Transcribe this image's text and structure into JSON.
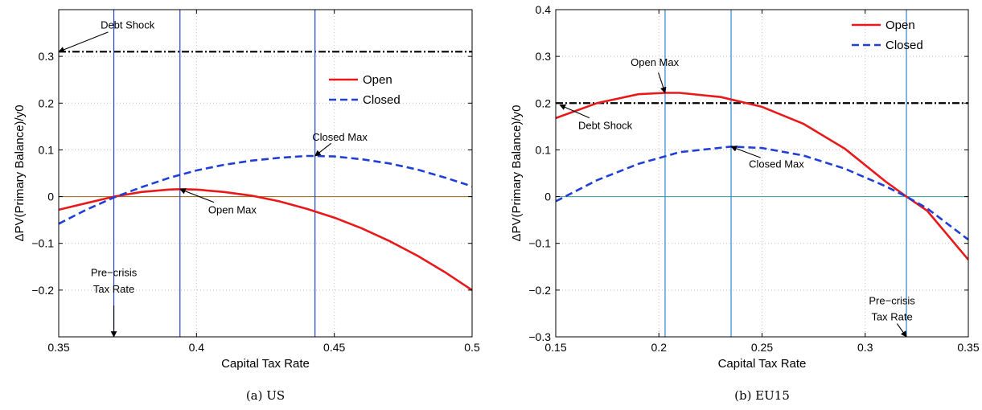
{
  "chart_data": [
    {
      "type": "line",
      "caption": "(a)  US",
      "xlabel": "Capital Tax Rate",
      "ylabel": "ΔPV(Primary Balance)/y0",
      "xlim": [
        0.35,
        0.5
      ],
      "ylim": [
        -0.3,
        0.4
      ],
      "xticks": [
        0.35,
        0.4,
        0.45,
        0.5
      ],
      "xtick_labels": [
        "0.35",
        "0.4",
        "0.45",
        "0.5"
      ],
      "yticks": [
        -0.2,
        -0.1,
        0,
        0.1,
        0.2,
        0.3
      ],
      "ytick_labels": [
        "−0.2",
        "−0.1",
        "0",
        "0.1",
        "0.2",
        "0.3"
      ],
      "grid": true,
      "legend_position": "right",
      "series": [
        {
          "name": "Open",
          "color": "#e8191a",
          "style": "solid",
          "x": [
            0.35,
            0.36,
            0.37,
            0.38,
            0.39,
            0.394,
            0.4,
            0.41,
            0.42,
            0.43,
            0.44,
            0.45,
            0.46,
            0.47,
            0.48,
            0.49,
            0.5
          ],
          "y": [
            -0.028,
            -0.014,
            0.0,
            0.01,
            0.015,
            0.016,
            0.015,
            0.01,
            0.002,
            -0.01,
            -0.026,
            -0.045,
            -0.068,
            -0.095,
            -0.126,
            -0.161,
            -0.2
          ]
        },
        {
          "name": "Closed",
          "color": "#1f3fd6",
          "style": "dashed",
          "x": [
            0.35,
            0.36,
            0.37,
            0.38,
            0.39,
            0.4,
            0.41,
            0.42,
            0.43,
            0.44,
            0.443,
            0.45,
            0.46,
            0.47,
            0.48,
            0.49,
            0.5
          ],
          "y": [
            -0.058,
            -0.028,
            -0.002,
            0.02,
            0.04,
            0.056,
            0.068,
            0.077,
            0.083,
            0.087,
            0.087,
            0.086,
            0.08,
            0.071,
            0.058,
            0.041,
            0.022
          ]
        }
      ],
      "hlines": [
        {
          "role": "debt_shock",
          "y": 0.31,
          "color": "#000000",
          "style": "dashdot"
        },
        {
          "role": "zero",
          "y": 0,
          "color": "#a07830",
          "style": "solid"
        }
      ],
      "vlines": [
        {
          "x": 0.37,
          "color": "#1f3fd6"
        },
        {
          "x": 0.394,
          "color": "#1f3fd6"
        },
        {
          "x": 0.443,
          "color": "#1f3fd6"
        }
      ],
      "annotations": [
        {
          "text": "Debt Shock",
          "text_at": [
            0.375,
            0.36
          ],
          "arrow_to": [
            0.35,
            0.31
          ]
        },
        {
          "text": "Closed Max",
          "text_at": [
            0.452,
            0.12
          ],
          "arrow_to": [
            0.443,
            0.087
          ]
        },
        {
          "text": "Open Max",
          "text_at": [
            0.413,
            -0.036
          ],
          "arrow_to": [
            0.394,
            0.016
          ]
        },
        {
          "text": "Pre−crisis",
          "text_at": [
            0.37,
            -0.17
          ],
          "arrow_to": null
        },
        {
          "text": "Tax Rate",
          "text_at": [
            0.37,
            -0.205
          ],
          "arrow_to": [
            0.37,
            -0.3
          ]
        }
      ]
    },
    {
      "type": "line",
      "caption": "(b)  EU15",
      "xlabel": "Capital Tax Rate",
      "ylabel": "ΔPV(Primary Balance)/y0",
      "xlim": [
        0.15,
        0.35
      ],
      "ylim": [
        -0.3,
        0.4
      ],
      "xticks": [
        0.15,
        0.2,
        0.25,
        0.3,
        0.35
      ],
      "xtick_labels": [
        "0.15",
        "0.2",
        "0.25",
        "0.3",
        "0.35"
      ],
      "yticks": [
        -0.3,
        -0.2,
        -0.1,
        0,
        0.1,
        0.2,
        0.3,
        0.4
      ],
      "ytick_labels": [
        "−0.3",
        "−0.2",
        "−0.1",
        "0",
        "0.1",
        "0.2",
        "0.3",
        "0.4"
      ],
      "grid": true,
      "legend_position": "top-right",
      "series": [
        {
          "name": "Open",
          "color": "#e8191a",
          "style": "solid",
          "x": [
            0.15,
            0.17,
            0.19,
            0.203,
            0.21,
            0.23,
            0.25,
            0.27,
            0.29,
            0.31,
            0.32,
            0.33,
            0.35
          ],
          "y": [
            0.168,
            0.2,
            0.219,
            0.222,
            0.222,
            0.213,
            0.192,
            0.156,
            0.103,
            0.032,
            0.0,
            -0.03,
            -0.135
          ]
        },
        {
          "name": "Closed",
          "color": "#1f3fd6",
          "style": "dashed",
          "x": [
            0.15,
            0.17,
            0.19,
            0.21,
            0.235,
            0.25,
            0.27,
            0.29,
            0.31,
            0.32,
            0.33,
            0.35
          ],
          "y": [
            -0.01,
            0.035,
            0.07,
            0.095,
            0.107,
            0.104,
            0.088,
            0.06,
            0.022,
            0.0,
            -0.025,
            -0.092
          ]
        }
      ],
      "hlines": [
        {
          "role": "debt_shock",
          "y": 0.2,
          "color": "#000000",
          "style": "dashdot"
        },
        {
          "role": "zero",
          "y": 0,
          "color": "#4aa5a0",
          "style": "solid"
        }
      ],
      "vlines": [
        {
          "x": 0.203,
          "color": "#2a8ad0"
        },
        {
          "x": 0.235,
          "color": "#2a8ad0"
        },
        {
          "x": 0.32,
          "color": "#2a8ad0"
        }
      ],
      "annotations": [
        {
          "text": "Open Max",
          "text_at": [
            0.198,
            0.28
          ],
          "arrow_to": [
            0.203,
            0.222
          ]
        },
        {
          "text": "Debt Shock",
          "text_at": [
            0.174,
            0.145
          ],
          "arrow_to": [
            0.152,
            0.196
          ]
        },
        {
          "text": "Closed Max",
          "text_at": [
            0.257,
            0.062
          ],
          "arrow_to": [
            0.235,
            0.107
          ]
        },
        {
          "text": "Pre−crisis",
          "text_at": [
            0.313,
            -0.23
          ],
          "arrow_to": null
        },
        {
          "text": "Tax Rate",
          "text_at": [
            0.313,
            -0.265
          ],
          "arrow_to": [
            0.32,
            -0.3
          ]
        }
      ]
    }
  ]
}
